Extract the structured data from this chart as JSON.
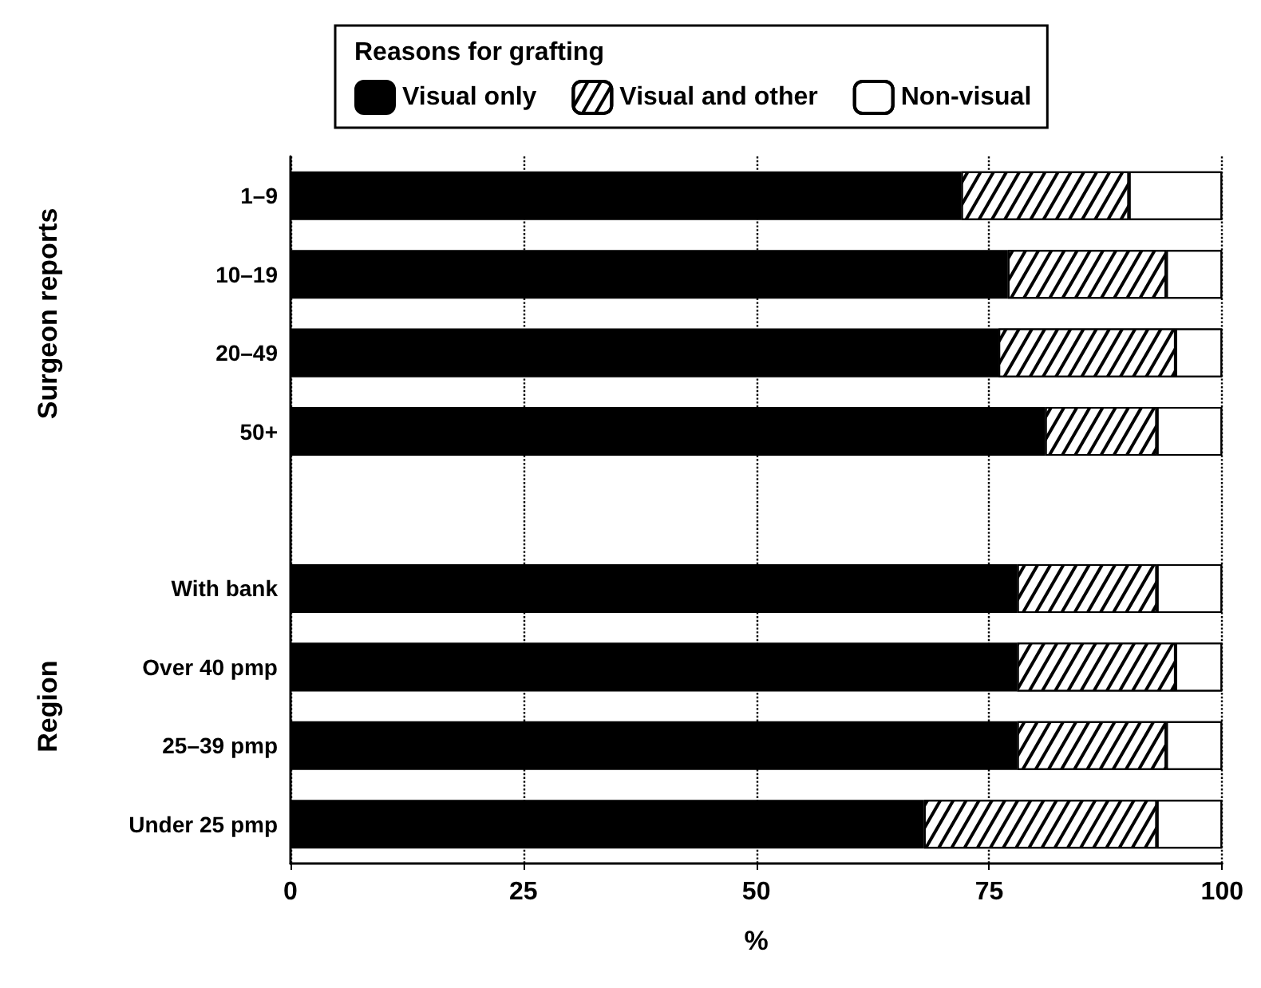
{
  "chart_data": {
    "type": "bar",
    "orientation": "horizontal",
    "stacked": true,
    "legend_title": "Reasons for grafting",
    "xlabel": "%",
    "categories": [
      "1–9",
      "10–19",
      "20–49",
      "50+",
      null,
      "With bank",
      "Over 40 pmp",
      "25–39 pmp",
      "Under 25 pmp"
    ],
    "series": [
      {
        "name": "Visual only",
        "color": "#000000",
        "values": [
          72,
          77,
          76,
          81,
          null,
          78,
          78,
          78,
          68
        ]
      },
      {
        "name": "Visual and other",
        "color": "#ffffff",
        "values": [
          18,
          17,
          19,
          12,
          null,
          15,
          17,
          16,
          25
        ]
      },
      {
        "name": "Non-visual",
        "color": "#ffffff",
        "values": [
          10,
          6,
          5,
          7,
          null,
          7,
          5,
          6,
          7
        ]
      }
    ],
    "annotations": [
      "Surgeon reports",
      "Region"
    ],
    "xlim": [
      0,
      100
    ],
    "xticks": [
      0,
      25,
      50,
      75,
      100
    ],
    "grid": "x",
    "legend": "top"
  }
}
